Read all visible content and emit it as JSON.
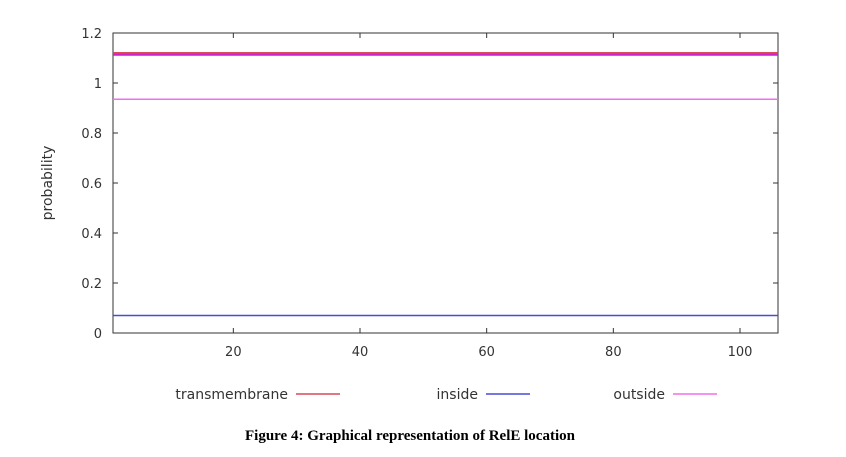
{
  "chart_data": {
    "type": "line",
    "ylabel": "probability",
    "xlim": [
      1,
      106
    ],
    "ylim": [
      0,
      1.2
    ],
    "x_ticks": [
      20,
      40,
      60,
      80,
      100
    ],
    "y_ticks": [
      0,
      0.2,
      0.4,
      0.6,
      0.8,
      1,
      1.2
    ],
    "y_tick_labels": [
      "0",
      "0.2",
      "0.4",
      "0.6",
      "0.8",
      "1",
      "1.2"
    ],
    "grid": false,
    "legend_position": "bottom",
    "series": [
      {
        "name": "transmembrane",
        "color": "#d94a5a",
        "x": [
          1,
          106
        ],
        "values": [
          1.12,
          1.12
        ],
        "stroke": 2
      },
      {
        "name": "inside",
        "color": "#4a4ad9",
        "x": [
          1,
          106
        ],
        "values": [
          0.07,
          0.07
        ],
        "stroke": 1.5
      },
      {
        "name": "outside",
        "color": "#f06ef0",
        "x": [
          1,
          106
        ],
        "values": [
          0.935,
          0.935
        ],
        "stroke": 1.5
      }
    ],
    "extra_lines": [
      {
        "color": "#cc22cc",
        "x": [
          1,
          106
        ],
        "values": [
          1.113,
          1.113
        ],
        "stroke": 2
      }
    ]
  },
  "caption": "Figure 4: Graphical representation of RelE location"
}
